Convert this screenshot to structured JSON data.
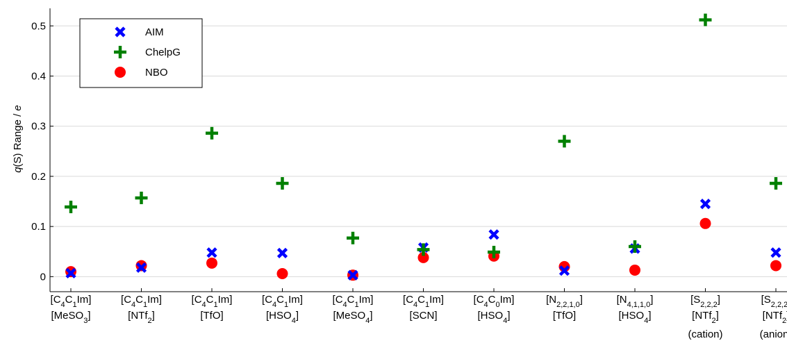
{
  "chart_data": {
    "type": "scatter",
    "ylabel_italic_q": "q",
    "ylabel_mid": "(S) Range / ",
    "ylabel_italic_e": "e",
    "ylim": [
      -0.03,
      0.535
    ],
    "yticks": [
      0,
      0.1,
      0.2,
      0.3,
      0.4,
      0.5
    ],
    "ytick_labels": [
      "0",
      "0.1",
      "0.2",
      "0.3",
      "0.4",
      "0.5"
    ],
    "grid": true,
    "legend_position": "top-left",
    "categories": [
      {
        "line1": [
          [
            "[C",
            ""
          ],
          [
            "4",
            "sub"
          ],
          [
            "C",
            ""
          ],
          [
            "1",
            "sub"
          ],
          [
            "Im]",
            ""
          ]
        ],
        "line2": [
          [
            "[MeSO",
            ""
          ],
          [
            "3",
            "sub"
          ],
          [
            "]",
            ""
          ]
        ]
      },
      {
        "line1": [
          [
            "[C",
            ""
          ],
          [
            "4",
            "sub"
          ],
          [
            "C",
            ""
          ],
          [
            "1",
            "sub"
          ],
          [
            "Im]",
            ""
          ]
        ],
        "line2": [
          [
            "[NTf",
            ""
          ],
          [
            "2",
            "sub"
          ],
          [
            "]",
            ""
          ]
        ]
      },
      {
        "line1": [
          [
            "[C",
            ""
          ],
          [
            "4",
            "sub"
          ],
          [
            "C",
            ""
          ],
          [
            "1",
            "sub"
          ],
          [
            "Im]",
            ""
          ]
        ],
        "line2": [
          [
            "[TfO]",
            ""
          ]
        ]
      },
      {
        "line1": [
          [
            "[C",
            ""
          ],
          [
            "4",
            "sub"
          ],
          [
            "C",
            ""
          ],
          [
            "1",
            "sub"
          ],
          [
            "Im]",
            ""
          ]
        ],
        "line2": [
          [
            "[HSO",
            ""
          ],
          [
            "4",
            "sub"
          ],
          [
            "]",
            ""
          ]
        ]
      },
      {
        "line1": [
          [
            "[C",
            ""
          ],
          [
            "4",
            "sub"
          ],
          [
            "C",
            ""
          ],
          [
            "1",
            "sub"
          ],
          [
            "Im]",
            ""
          ]
        ],
        "line2": [
          [
            "[MeSO",
            ""
          ],
          [
            "4",
            "sub"
          ],
          [
            "]",
            ""
          ]
        ]
      },
      {
        "line1": [
          [
            "[C",
            ""
          ],
          [
            "4",
            "sub"
          ],
          [
            "C",
            ""
          ],
          [
            "1",
            "sub"
          ],
          [
            "Im]",
            ""
          ]
        ],
        "line2": [
          [
            "[SCN]",
            ""
          ]
        ]
      },
      {
        "line1": [
          [
            "[C",
            ""
          ],
          [
            "4",
            "sub"
          ],
          [
            "C",
            ""
          ],
          [
            "0",
            "sub"
          ],
          [
            "Im]",
            ""
          ]
        ],
        "line2": [
          [
            "[HSO",
            ""
          ],
          [
            "4",
            "sub"
          ],
          [
            "]",
            ""
          ]
        ]
      },
      {
        "line1": [
          [
            "[N",
            ""
          ],
          [
            "2,2,1,0",
            "sub"
          ],
          [
            "]",
            ""
          ]
        ],
        "line2": [
          [
            "[TfO]",
            ""
          ]
        ]
      },
      {
        "line1": [
          [
            "[N",
            ""
          ],
          [
            "4,1,1,0",
            "sub"
          ],
          [
            "]",
            ""
          ]
        ],
        "line2": [
          [
            "[HSO",
            ""
          ],
          [
            "4",
            "sub"
          ],
          [
            "]",
            ""
          ]
        ]
      },
      {
        "line1": [
          [
            "[S",
            ""
          ],
          [
            "2,2,2",
            "sub"
          ],
          [
            "]",
            ""
          ]
        ],
        "line2": [
          [
            "[NTf",
            ""
          ],
          [
            "2",
            "sub"
          ],
          [
            "]",
            ""
          ]
        ],
        "line3": "(cation)"
      },
      {
        "line1": [
          [
            "[S",
            ""
          ],
          [
            "2,2,2",
            "sub"
          ],
          [
            "]",
            ""
          ]
        ],
        "line2": [
          [
            "[NTf",
            ""
          ],
          [
            "2",
            "sub"
          ],
          [
            "]",
            ""
          ]
        ],
        "line3": "(anion)"
      }
    ],
    "series": [
      {
        "name": "AIM",
        "marker": "x",
        "color": "#0000ff",
        "values": [
          0.007,
          0.018,
          0.048,
          0.047,
          0.003,
          0.058,
          0.084,
          0.012,
          0.056,
          0.145,
          0.048
        ]
      },
      {
        "name": "ChelpG",
        "marker": "plus",
        "color": "#008000",
        "values": [
          0.139,
          0.157,
          0.286,
          0.186,
          0.077,
          0.054,
          0.049,
          0.27,
          0.06,
          0.512,
          0.186
        ]
      },
      {
        "name": "NBO",
        "marker": "circle",
        "color": "#ff0000",
        "values": [
          0.01,
          0.022,
          0.027,
          0.006,
          0.003,
          0.038,
          0.041,
          0.02,
          0.013,
          0.106,
          0.022
        ]
      }
    ]
  }
}
